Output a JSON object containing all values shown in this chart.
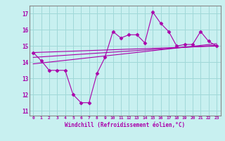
{
  "xlabel": "Windchill (Refroidissement éolien,°C)",
  "bg_color": "#c8f0f0",
  "grid_color": "#a0d8d8",
  "line_color": "#aa00aa",
  "spine_color": "#888888",
  "xlim": [
    -0.5,
    23.5
  ],
  "ylim": [
    10.7,
    17.5
  ],
  "yticks": [
    11,
    12,
    13,
    14,
    15,
    16,
    17
  ],
  "xticks": [
    0,
    1,
    2,
    3,
    4,
    5,
    6,
    7,
    8,
    9,
    10,
    11,
    12,
    13,
    14,
    15,
    16,
    17,
    18,
    19,
    20,
    21,
    22,
    23
  ],
  "main_x": [
    0,
    1,
    2,
    3,
    4,
    5,
    6,
    7,
    8,
    9,
    10,
    11,
    12,
    13,
    14,
    15,
    16,
    17,
    18,
    19,
    20,
    21,
    22,
    23
  ],
  "main_y": [
    14.6,
    14.1,
    13.5,
    13.5,
    13.5,
    12.0,
    11.5,
    11.5,
    13.3,
    14.3,
    15.9,
    15.5,
    15.7,
    15.7,
    15.2,
    17.1,
    16.4,
    15.9,
    15.0,
    15.1,
    15.1,
    15.9,
    15.3,
    15.0
  ],
  "line1_x": [
    0,
    23
  ],
  "line1_y": [
    14.6,
    15.0
  ],
  "line2_x": [
    0,
    23
  ],
  "line2_y": [
    14.3,
    15.05
  ],
  "line3_x": [
    0,
    23
  ],
  "line3_y": [
    13.9,
    15.15
  ]
}
